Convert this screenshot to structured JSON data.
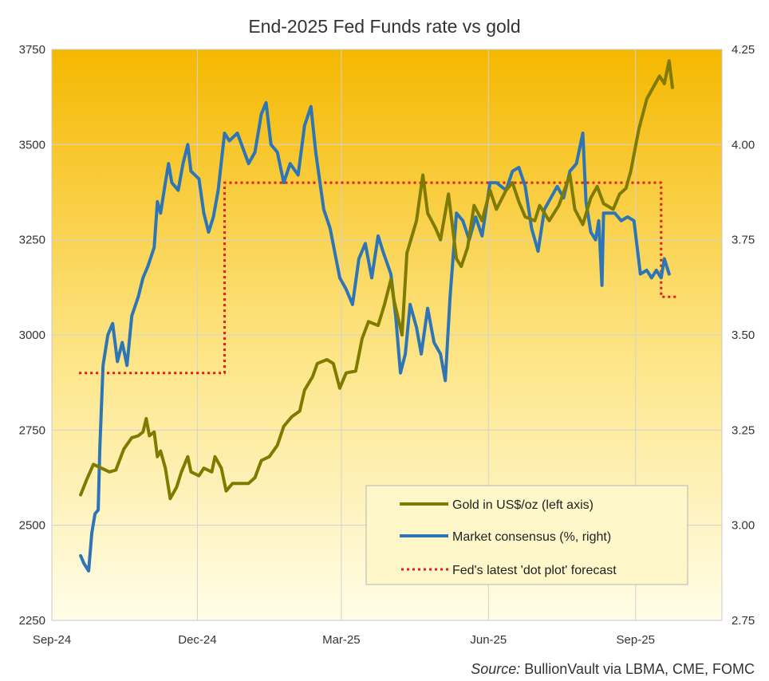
{
  "chart_data": {
    "type": "line",
    "title": "End-2025 Fed Funds rate vs gold",
    "source": {
      "label": "Source:",
      "text": " BullionVault via LBMA, CME, FOMC"
    },
    "x_axis": {
      "ticks": [
        "Sep-24",
        "Dec-24",
        "Mar-25",
        "Jun-25",
        "Sep-25"
      ],
      "tick_dates": [
        "2024-09-01",
        "2024-12-01",
        "2025-03-01",
        "2025-06-01",
        "2025-09-01"
      ],
      "range": [
        "2024-09-01",
        "2025-10-25"
      ]
    },
    "y_left": {
      "ticks": [
        "2250",
        "2500",
        "2750",
        "3000",
        "3250",
        "3500",
        "3750"
      ],
      "range": [
        2250,
        3750
      ]
    },
    "y_right": {
      "ticks": [
        "2.75",
        "3.00",
        "3.25",
        "3.50",
        "3.75",
        "4.00",
        "4.25"
      ],
      "range": [
        2.75,
        4.25
      ]
    },
    "grid": true,
    "background": {
      "top": "#f5b800",
      "bottom": "#fffde8"
    },
    "legend_position": "bottom-right",
    "series": [
      {
        "name": "Gold in US$/oz (left axis)",
        "axis": "left",
        "color": "#7f7a00",
        "style": "solid",
        "points": [
          [
            "2024-09-19",
            2580
          ],
          [
            "2024-09-23",
            2622
          ],
          [
            "2024-09-27",
            2660
          ],
          [
            "2024-10-02",
            2650
          ],
          [
            "2024-10-07",
            2640
          ],
          [
            "2024-10-11",
            2645
          ],
          [
            "2024-10-16",
            2700
          ],
          [
            "2024-10-21",
            2730
          ],
          [
            "2024-10-25",
            2735
          ],
          [
            "2024-10-28",
            2745
          ],
          [
            "2024-10-30",
            2780
          ],
          [
            "2024-11-01",
            2735
          ],
          [
            "2024-11-04",
            2745
          ],
          [
            "2024-11-06",
            2680
          ],
          [
            "2024-11-08",
            2695
          ],
          [
            "2024-11-11",
            2650
          ],
          [
            "2024-11-14",
            2570
          ],
          [
            "2024-11-18",
            2600
          ],
          [
            "2024-11-21",
            2640
          ],
          [
            "2024-11-25",
            2680
          ],
          [
            "2024-11-27",
            2640
          ],
          [
            "2024-12-02",
            2630
          ],
          [
            "2024-12-05",
            2650
          ],
          [
            "2024-12-10",
            2640
          ],
          [
            "2024-12-12",
            2680
          ],
          [
            "2024-12-16",
            2650
          ],
          [
            "2024-12-19",
            2590
          ],
          [
            "2024-12-23",
            2610
          ],
          [
            "2025-01-02",
            2610
          ],
          [
            "2025-01-06",
            2625
          ],
          [
            "2025-01-10",
            2670
          ],
          [
            "2025-01-15",
            2680
          ],
          [
            "2025-01-20",
            2710
          ],
          [
            "2025-01-24",
            2760
          ],
          [
            "2025-01-29",
            2785
          ],
          [
            "2025-02-03",
            2800
          ],
          [
            "2025-02-06",
            2855
          ],
          [
            "2025-02-11",
            2890
          ],
          [
            "2025-02-14",
            2925
          ],
          [
            "2025-02-20",
            2935
          ],
          [
            "2025-02-24",
            2925
          ],
          [
            "2025-02-28",
            2860
          ],
          [
            "2025-03-04",
            2900
          ],
          [
            "2025-03-10",
            2905
          ],
          [
            "2025-03-14",
            2990
          ],
          [
            "2025-03-18",
            3035
          ],
          [
            "2025-03-24",
            3025
          ],
          [
            "2025-03-28",
            3080
          ],
          [
            "2025-04-01",
            3145
          ],
          [
            "2025-04-03",
            3090
          ],
          [
            "2025-04-08",
            3000
          ],
          [
            "2025-04-11",
            3215
          ],
          [
            "2025-04-17",
            3300
          ],
          [
            "2025-04-21",
            3420
          ],
          [
            "2025-04-24",
            3320
          ],
          [
            "2025-04-29",
            3280
          ],
          [
            "2025-05-02",
            3250
          ],
          [
            "2025-05-07",
            3370
          ],
          [
            "2025-05-12",
            3200
          ],
          [
            "2025-05-15",
            3180
          ],
          [
            "2025-05-19",
            3230
          ],
          [
            "2025-05-23",
            3340
          ],
          [
            "2025-05-28",
            3300
          ],
          [
            "2025-06-02",
            3380
          ],
          [
            "2025-06-06",
            3330
          ],
          [
            "2025-06-12",
            3380
          ],
          [
            "2025-06-16",
            3400
          ],
          [
            "2025-06-20",
            3350
          ],
          [
            "2025-06-24",
            3310
          ],
          [
            "2025-06-30",
            3300
          ],
          [
            "2025-07-03",
            3340
          ],
          [
            "2025-07-09",
            3300
          ],
          [
            "2025-07-15",
            3340
          ],
          [
            "2025-07-22",
            3420
          ],
          [
            "2025-07-25",
            3330
          ],
          [
            "2025-07-30",
            3290
          ],
          [
            "2025-08-04",
            3360
          ],
          [
            "2025-08-08",
            3390
          ],
          [
            "2025-08-12",
            3345
          ],
          [
            "2025-08-18",
            3330
          ],
          [
            "2025-08-22",
            3370
          ],
          [
            "2025-08-26",
            3385
          ],
          [
            "2025-08-29",
            3430
          ],
          [
            "2025-09-03",
            3540
          ],
          [
            "2025-09-08",
            3620
          ],
          [
            "2025-09-12",
            3650
          ],
          [
            "2025-09-16",
            3680
          ],
          [
            "2025-09-19",
            3660
          ],
          [
            "2025-09-22",
            3720
          ],
          [
            "2025-09-24",
            3650
          ]
        ]
      },
      {
        "name": "Market consensus (%, right)",
        "axis": "right",
        "color": "#2e75b6",
        "style": "solid",
        "points": [
          [
            "2024-09-19",
            2.92
          ],
          [
            "2024-09-21",
            2.9
          ],
          [
            "2024-09-24",
            2.88
          ],
          [
            "2024-09-26",
            2.98
          ],
          [
            "2024-09-28",
            3.03
          ],
          [
            "2024-09-30",
            3.04
          ],
          [
            "2024-10-01",
            3.2
          ],
          [
            "2024-10-03",
            3.42
          ],
          [
            "2024-10-06",
            3.5
          ],
          [
            "2024-10-09",
            3.53
          ],
          [
            "2024-10-12",
            3.43
          ],
          [
            "2024-10-15",
            3.48
          ],
          [
            "2024-10-18",
            3.42
          ],
          [
            "2024-10-21",
            3.55
          ],
          [
            "2024-10-25",
            3.6
          ],
          [
            "2024-10-28",
            3.65
          ],
          [
            "2024-10-31",
            3.68
          ],
          [
            "2024-11-04",
            3.73
          ],
          [
            "2024-11-06",
            3.85
          ],
          [
            "2024-11-08",
            3.82
          ],
          [
            "2024-11-11",
            3.9
          ],
          [
            "2024-11-13",
            3.95
          ],
          [
            "2024-11-15",
            3.9
          ],
          [
            "2024-11-19",
            3.88
          ],
          [
            "2024-11-22",
            3.95
          ],
          [
            "2024-11-25",
            4.0
          ],
          [
            "2024-11-27",
            3.93
          ],
          [
            "2024-12-02",
            3.91
          ],
          [
            "2024-12-05",
            3.82
          ],
          [
            "2024-12-08",
            3.77
          ],
          [
            "2024-12-11",
            3.81
          ],
          [
            "2024-12-14",
            3.88
          ],
          [
            "2024-12-18",
            4.03
          ],
          [
            "2024-12-21",
            4.01
          ],
          [
            "2024-12-26",
            4.03
          ],
          [
            "2025-01-02",
            3.95
          ],
          [
            "2025-01-06",
            3.98
          ],
          [
            "2025-01-10",
            4.08
          ],
          [
            "2025-01-13",
            4.11
          ],
          [
            "2025-01-16",
            4.0
          ],
          [
            "2025-01-20",
            3.98
          ],
          [
            "2025-01-24",
            3.9
          ],
          [
            "2025-01-28",
            3.95
          ],
          [
            "2025-02-02",
            3.92
          ],
          [
            "2025-02-06",
            4.05
          ],
          [
            "2025-02-10",
            4.1
          ],
          [
            "2025-02-13",
            3.98
          ],
          [
            "2025-02-18",
            3.83
          ],
          [
            "2025-02-22",
            3.78
          ],
          [
            "2025-02-28",
            3.65
          ],
          [
            "2025-03-04",
            3.62
          ],
          [
            "2025-03-08",
            3.58
          ],
          [
            "2025-03-12",
            3.7
          ],
          [
            "2025-03-16",
            3.74
          ],
          [
            "2025-03-20",
            3.65
          ],
          [
            "2025-03-24",
            3.76
          ],
          [
            "2025-03-27",
            3.72
          ],
          [
            "2025-04-01",
            3.66
          ],
          [
            "2025-04-04",
            3.55
          ],
          [
            "2025-04-07",
            3.4
          ],
          [
            "2025-04-10",
            3.45
          ],
          [
            "2025-04-13",
            3.58
          ],
          [
            "2025-04-17",
            3.52
          ],
          [
            "2025-04-20",
            3.45
          ],
          [
            "2025-04-24",
            3.57
          ],
          [
            "2025-04-28",
            3.48
          ],
          [
            "2025-05-02",
            3.45
          ],
          [
            "2025-05-05",
            3.38
          ],
          [
            "2025-05-08",
            3.6
          ],
          [
            "2025-05-12",
            3.82
          ],
          [
            "2025-05-16",
            3.8
          ],
          [
            "2025-05-20",
            3.75
          ],
          [
            "2025-05-24",
            3.81
          ],
          [
            "2025-05-28",
            3.76
          ],
          [
            "2025-06-02",
            3.9
          ],
          [
            "2025-06-06",
            3.9
          ],
          [
            "2025-06-12",
            3.88
          ],
          [
            "2025-06-16",
            3.93
          ],
          [
            "2025-06-20",
            3.94
          ],
          [
            "2025-06-24",
            3.89
          ],
          [
            "2025-06-28",
            3.78
          ],
          [
            "2025-07-02",
            3.72
          ],
          [
            "2025-07-06",
            3.83
          ],
          [
            "2025-07-10",
            3.86
          ],
          [
            "2025-07-14",
            3.89
          ],
          [
            "2025-07-18",
            3.86
          ],
          [
            "2025-07-22",
            3.93
          ],
          [
            "2025-07-26",
            3.95
          ],
          [
            "2025-07-30",
            4.03
          ],
          [
            "2025-08-01",
            3.85
          ],
          [
            "2025-08-04",
            3.77
          ],
          [
            "2025-08-07",
            3.75
          ],
          [
            "2025-08-09",
            3.8
          ],
          [
            "2025-08-11",
            3.63
          ],
          [
            "2025-08-12",
            3.82
          ],
          [
            "2025-08-15",
            3.82
          ],
          [
            "2025-08-19",
            3.82
          ],
          [
            "2025-08-23",
            3.8
          ],
          [
            "2025-08-27",
            3.81
          ],
          [
            "2025-08-31",
            3.8
          ],
          [
            "2025-09-04",
            3.66
          ],
          [
            "2025-09-08",
            3.67
          ],
          [
            "2025-09-11",
            3.65
          ],
          [
            "2025-09-14",
            3.67
          ],
          [
            "2025-09-17",
            3.65
          ],
          [
            "2025-09-19",
            3.7
          ],
          [
            "2025-09-22",
            3.66
          ]
        ]
      },
      {
        "name": "Fed's latest 'dot plot' forecast",
        "axis": "right",
        "color": "#e31b1b",
        "style": "dotted",
        "points": [
          [
            "2024-09-18",
            3.4
          ],
          [
            "2024-12-18",
            3.4
          ],
          [
            "2024-12-18",
            3.9
          ],
          [
            "2025-09-17",
            3.9
          ],
          [
            "2025-09-17",
            3.6
          ],
          [
            "2025-09-27",
            3.6
          ]
        ]
      }
    ]
  }
}
